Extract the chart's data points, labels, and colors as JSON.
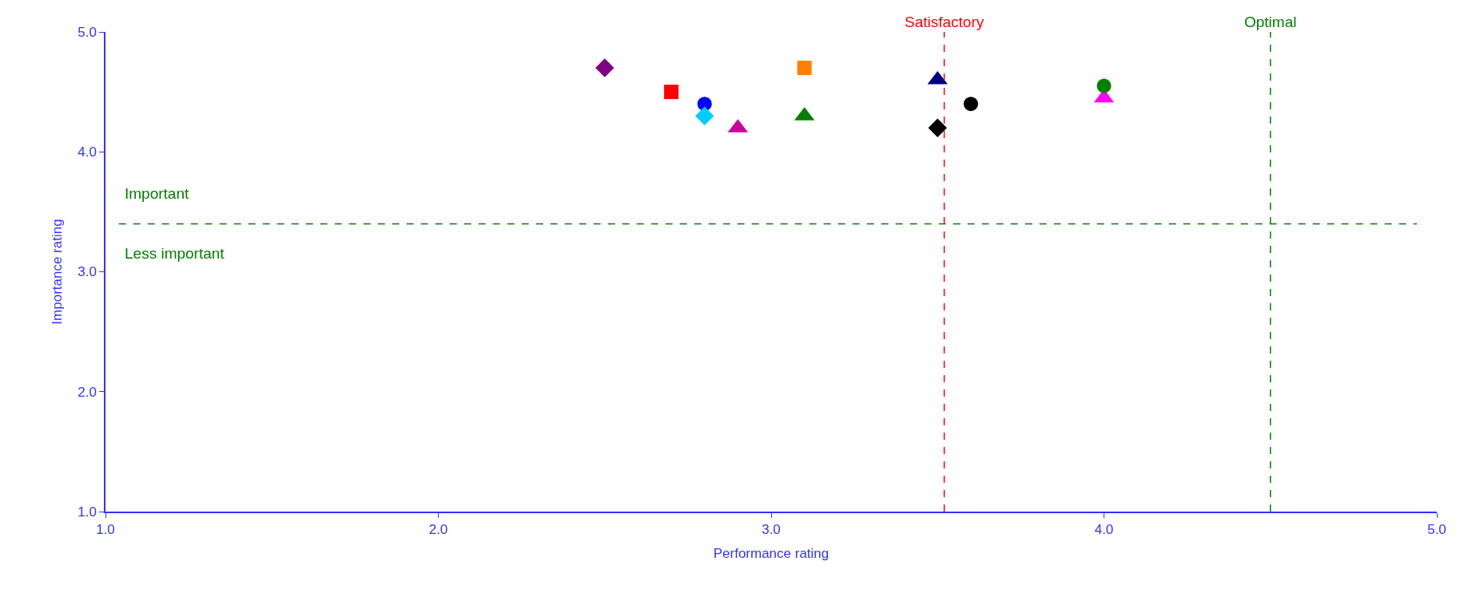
{
  "chart_data": {
    "type": "scatter",
    "xlabel": "Performance rating",
    "ylabel": "Importance rating",
    "xlim": [
      1.0,
      5.0
    ],
    "xticks": [
      {
        "value": 1,
        "label": "1.0"
      },
      {
        "value": 2,
        "label": "2.0"
      },
      {
        "value": 3,
        "label": "3.0"
      },
      {
        "value": 4,
        "label": "4.0"
      },
      {
        "value": 5,
        "label": "5.0"
      }
    ],
    "ylim": [
      1.0,
      5.0
    ],
    "yticks": [
      {
        "value": 1,
        "label": "1.0"
      },
      {
        "value": 2,
        "label": "2.0"
      },
      {
        "value": 3,
        "label": "3.0"
      },
      {
        "value": 4,
        "label": "4.0"
      },
      {
        "value": 5,
        "label": "5.0"
      }
    ],
    "grid": false,
    "series": [
      {
        "color": "#800080",
        "marker": "diamond",
        "x": [
          2.5
        ],
        "values": [
          4.7
        ]
      },
      {
        "color": "#ff0000",
        "marker": "square",
        "x": [
          2.7
        ],
        "values": [
          4.5
        ]
      },
      {
        "color": "#0000ff",
        "marker": "circle",
        "x": [
          2.8
        ],
        "values": [
          4.4
        ]
      },
      {
        "color": "#00ccff",
        "marker": "diamond",
        "x": [
          2.8
        ],
        "values": [
          4.3
        ]
      },
      {
        "color": "#cc0099",
        "marker": "triangle",
        "x": [
          2.9
        ],
        "values": [
          4.2
        ]
      },
      {
        "color": "#ff8000",
        "marker": "square",
        "x": [
          3.1
        ],
        "values": [
          4.7
        ]
      },
      {
        "color": "#008000",
        "marker": "triangle",
        "x": [
          3.1
        ],
        "values": [
          4.3
        ]
      },
      {
        "color": "#000080",
        "marker": "triangle",
        "x": [
          3.5
        ],
        "values": [
          4.6
        ]
      },
      {
        "color": "#000000",
        "marker": "diamond",
        "x": [
          3.5
        ],
        "values": [
          4.2
        ]
      },
      {
        "color": "#000000",
        "marker": "circle",
        "x": [
          3.6
        ],
        "values": [
          4.4
        ]
      },
      {
        "color": "#ff00ff",
        "marker": "triangle",
        "x": [
          4.0
        ],
        "values": [
          4.45
        ]
      },
      {
        "color": "#008000",
        "marker": "circle",
        "x": [
          4.0
        ],
        "values": [
          4.55
        ]
      }
    ],
    "ref_lines": [
      {
        "axis": "y",
        "value": 3.4,
        "label": null,
        "color": "#008000",
        "line_style": "dashed"
      },
      {
        "axis": "x",
        "value": 3.52,
        "label": "Satisfactory",
        "color": "#ff0000",
        "line_style": "dashed"
      },
      {
        "axis": "x",
        "value": 4.5,
        "label": "Optimal",
        "color": "#008000",
        "line_style": "dashed"
      }
    ],
    "annotations": [
      "Important",
      "Less important"
    ]
  }
}
